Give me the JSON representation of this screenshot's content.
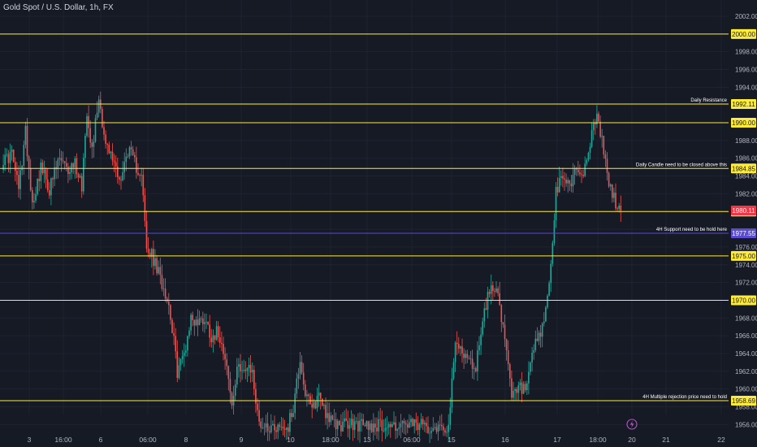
{
  "title": "Gold Spot / U.S. Dollar, 1h, FX",
  "icons": {
    "replay": "lightning-icon"
  },
  "colors": {
    "bg": "#161a25",
    "grid": "#1f2330",
    "up": "#26a69a",
    "down": "#ef5350",
    "level": "#ffeb3b",
    "support": "#5b4bd1",
    "current": "#f23645",
    "axis_text": "#b2b5be"
  },
  "chart_data": {
    "type": "candlestick",
    "title": "Gold Spot / U.S. Dollar, 1h, FX",
    "ylim": [
      1955.5,
      2003.5
    ],
    "y_ticks": [
      "1956.00",
      "1958.00",
      "1960.00",
      "1962.00",
      "1964.00",
      "1966.00",
      "1968.00",
      "1970.00",
      "1972.00",
      "1974.00",
      "1976.00",
      "1978.00",
      "1980.00",
      "1982.00",
      "1984.00",
      "1986.00",
      "1988.00",
      "1990.00",
      "1992.00",
      "1994.00",
      "1996.00",
      "1998.00",
      "2000.00",
      "2002.00"
    ],
    "x_ticks": [
      "3",
      "16:00",
      "6",
      "06:00",
      "8",
      "9",
      "10",
      "18:00",
      "13",
      "06:00",
      "15",
      "16",
      "17",
      "18:00",
      "20",
      "21",
      "22"
    ],
    "horizontal_levels": [
      {
        "value": 2000.0,
        "label": "2000.00",
        "kind": "level"
      },
      {
        "value": 1992.11,
        "label": "1992.11",
        "kind": "level",
        "annotation": "Daily Resistance"
      },
      {
        "value": 1990.0,
        "label": "1990.00",
        "kind": "level"
      },
      {
        "value": 1984.85,
        "label": "1984.85",
        "kind": "level",
        "annotation": "Daily Candle need to be closed above this"
      },
      {
        "value": 1980.0,
        "label": "1980.00",
        "kind": "level"
      },
      {
        "value": 1977.55,
        "label": "1977.55",
        "kind": "support",
        "annotation": "4H Support need to be hold here"
      },
      {
        "value": 1975.0,
        "label": "1975.00",
        "kind": "level"
      },
      {
        "value": 1970.0,
        "label": "1970.00",
        "kind": "level"
      },
      {
        "value": 1958.69,
        "label": "1958.69",
        "kind": "level",
        "annotation": "4H Multiple rejection price need to hold"
      }
    ],
    "current_price": {
      "value": 1980.11,
      "label": "1980.11"
    },
    "price_anchors": [
      [
        0,
        1985.5
      ],
      [
        6,
        1986.5
      ],
      [
        10,
        1982.5
      ],
      [
        14,
        1989
      ],
      [
        18,
        1981
      ],
      [
        23,
        1985
      ],
      [
        28,
        1982.5
      ],
      [
        34,
        1986
      ],
      [
        38,
        1984.5
      ],
      [
        43,
        1985.5
      ],
      [
        47,
        1983
      ],
      [
        50,
        1991.5
      ],
      [
        53,
        1987
      ],
      [
        57,
        1993
      ],
      [
        61,
        1987.5
      ],
      [
        66,
        1985.5
      ],
      [
        70,
        1983.5
      ],
      [
        74,
        1987
      ],
      [
        79,
        1985
      ],
      [
        82,
        1984.5
      ],
      [
        85,
        1975.5
      ],
      [
        88,
        1975
      ],
      [
        92,
        1973
      ],
      [
        96,
        1971
      ],
      [
        99,
        1968.5
      ],
      [
        103,
        1962
      ],
      [
        107,
        1964
      ],
      [
        111,
        1968
      ],
      [
        115,
        1967.5
      ],
      [
        119,
        1968
      ],
      [
        123,
        1966
      ],
      [
        127,
        1966.5
      ],
      [
        131,
        1964
      ],
      [
        135,
        1958
      ],
      [
        139,
        1963
      ],
      [
        143,
        1962
      ],
      [
        147,
        1962
      ],
      [
        150,
        1957
      ],
      [
        153,
        1955.8
      ],
      [
        168,
        1955.8
      ],
      [
        171,
        1958
      ],
      [
        175,
        1963.5
      ],
      [
        178,
        1959.5
      ],
      [
        182,
        1957.5
      ],
      [
        186,
        1959.5
      ],
      [
        190,
        1957.5
      ],
      [
        194,
        1956
      ],
      [
        262,
        1955.8
      ],
      [
        266,
        1965
      ],
      [
        270,
        1964.5
      ],
      [
        274,
        1963
      ],
      [
        278,
        1962.5
      ],
      [
        282,
        1968
      ],
      [
        286,
        1971
      ],
      [
        290,
        1972
      ],
      [
        292,
        1969
      ],
      [
        296,
        1964
      ],
      [
        299,
        1959
      ],
      [
        303,
        1960
      ],
      [
        308,
        1960
      ],
      [
        312,
        1964.5
      ],
      [
        316,
        1966
      ],
      [
        320,
        1970
      ],
      [
        322,
        1974
      ],
      [
        325,
        1982
      ],
      [
        329,
        1984
      ],
      [
        333,
        1983
      ],
      [
        337,
        1985
      ],
      [
        341,
        1984
      ],
      [
        345,
        1988
      ],
      [
        349,
        1990.5
      ],
      [
        352,
        1988
      ],
      [
        356,
        1983
      ],
      [
        360,
        1981
      ],
      [
        363,
        1980.11
      ]
    ]
  }
}
